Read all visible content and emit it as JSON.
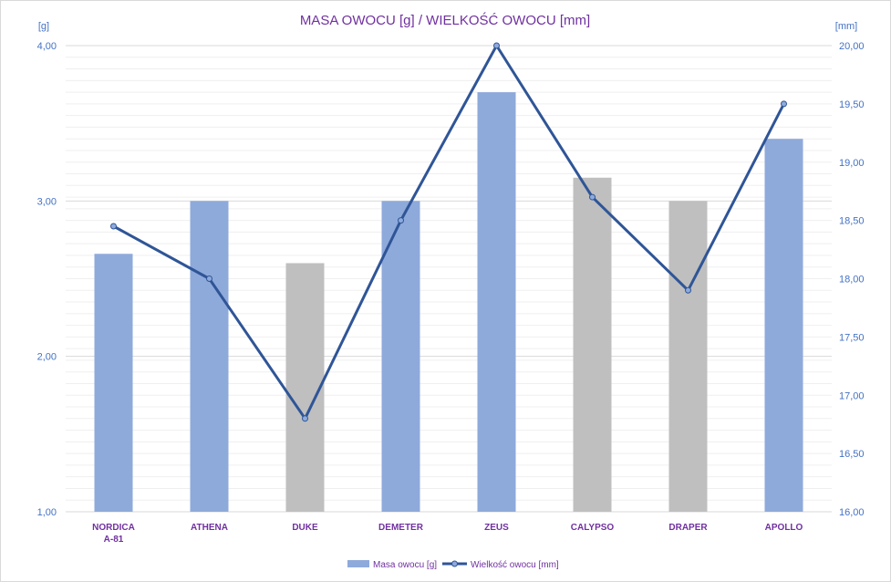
{
  "chart_data": {
    "type": "bar",
    "title": "MASA OWOCU [g] / WIELKOŚĆ OWOCU [mm]",
    "ylabel": "[g]",
    "y2label": "[mm]",
    "ylim": [
      1,
      4
    ],
    "y2lim": [
      16,
      20
    ],
    "yticks": [
      "1,00",
      "2,00",
      "3,00",
      "4,00"
    ],
    "y2ticks": [
      "16,00",
      "16,50",
      "17,00",
      "17,50",
      "18,00",
      "18,50",
      "19,00",
      "19,50",
      "20,00"
    ],
    "categories": [
      [
        "NORDICA",
        "A-81"
      ],
      [
        "ATHENA"
      ],
      [
        "DUKE"
      ],
      [
        "DEMETER"
      ],
      [
        "ZEUS"
      ],
      [
        "CALYPSO"
      ],
      [
        "DRAPER"
      ],
      [
        "APOLLO"
      ]
    ],
    "grid": true,
    "legend_position": "bottom",
    "series": [
      {
        "name": "Masa owocu [g]",
        "type": "bar",
        "axis": "left",
        "values": [
          2.66,
          3.0,
          2.6,
          3.0,
          3.7,
          3.15,
          3.0,
          3.4
        ],
        "colors": [
          "#8eaadb",
          "#8eaadb",
          "#bfbfbf",
          "#8eaadb",
          "#8eaadb",
          "#bfbfbf",
          "#bfbfbf",
          "#8eaadb"
        ]
      },
      {
        "name": "Wielkość owocu [mm]",
        "type": "line",
        "axis": "right",
        "values": [
          18.45,
          18.0,
          16.8,
          18.5,
          20.0,
          18.7,
          17.9,
          19.5
        ],
        "color": "#2f5597",
        "marker_color": "#8eaadb"
      }
    ],
    "colors": {
      "title": "#7030a0",
      "axis_text": "#4472c4",
      "category_text": "#7030a0",
      "grid": "#d9d9d9"
    }
  }
}
